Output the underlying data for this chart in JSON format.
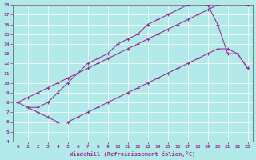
{
  "xlabel": "Windchill (Refroidissement éolien,°C)",
  "xlim": [
    -0.5,
    23.5
  ],
  "ylim": [
    4,
    18
  ],
  "xticks": [
    0,
    1,
    2,
    3,
    4,
    5,
    6,
    7,
    8,
    9,
    10,
    11,
    12,
    13,
    14,
    15,
    16,
    17,
    18,
    19,
    20,
    21,
    22,
    23
  ],
  "yticks": [
    4,
    5,
    6,
    7,
    8,
    9,
    10,
    11,
    12,
    13,
    14,
    15,
    16,
    17,
    18
  ],
  "bg_color": "#b2eaea",
  "line_color": "#993399",
  "line1_x": [
    0,
    1,
    2,
    3,
    4,
    5,
    6,
    7,
    8,
    9,
    10,
    11,
    12,
    13,
    14,
    15,
    16,
    17,
    18,
    19,
    20,
    21,
    22,
    23
  ],
  "line1_y": [
    8.0,
    7.5,
    7.5,
    8.0,
    9.0,
    10.0,
    11.0,
    12.0,
    12.5,
    13.0,
    14.0,
    14.5,
    15.0,
    16.0,
    16.5,
    17.0,
    17.5,
    18.0,
    18.5,
    18.0,
    16.0,
    13.0,
    13.0,
    11.5
  ],
  "line2_x": [
    0,
    1,
    2,
    3,
    4,
    5,
    6,
    7,
    8,
    9,
    10,
    11,
    12,
    13,
    14,
    15,
    16,
    17,
    18,
    19,
    20,
    21,
    22,
    23
  ],
  "line2_y": [
    8.0,
    8.5,
    9.0,
    9.5,
    10.0,
    10.5,
    11.0,
    11.5,
    12.0,
    12.5,
    13.0,
    13.5,
    14.0,
    14.5,
    15.0,
    15.5,
    16.0,
    16.5,
    17.0,
    17.5,
    18.0,
    18.5,
    18.5,
    18.0
  ],
  "line3_x": [
    1,
    2,
    3,
    4,
    5,
    6,
    7,
    8,
    9,
    10,
    11,
    12,
    13,
    14,
    15,
    16,
    17,
    18,
    19,
    20,
    21,
    22,
    23
  ],
  "line3_y": [
    7.5,
    7.0,
    6.5,
    6.0,
    6.0,
    6.5,
    7.0,
    7.5,
    8.0,
    8.5,
    9.0,
    9.5,
    10.0,
    10.5,
    11.0,
    11.5,
    12.0,
    12.5,
    13.0,
    13.5,
    13.5,
    13.0,
    11.5
  ],
  "marker": "+",
  "markersize": 3,
  "linewidth": 0.8
}
